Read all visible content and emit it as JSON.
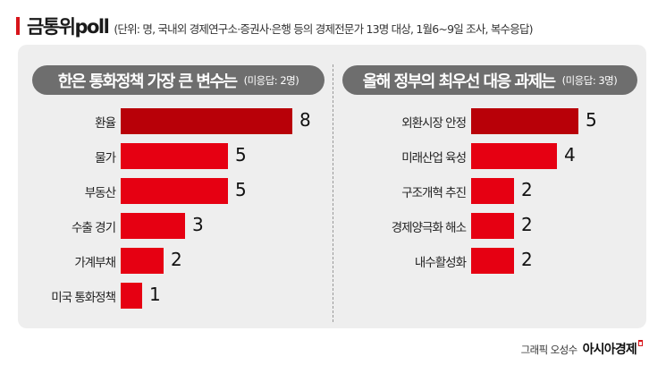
{
  "header": {
    "title": "금통위poll",
    "subtitle": "(단위: 명, 국내외 경제연구소·증권사·은행 등의 경제전문가 13명 대상, 1월6~9일 조사, 복수응답)",
    "accent_color": "#d7141a"
  },
  "left_panel": {
    "title": "한은 통화정책 가장 큰 변수는",
    "note": "(미응답: 2명)"
  },
  "right_panel": {
    "title": "올해 정부의 최우선 대응 과제는",
    "note": "(미응답: 3명)"
  },
  "credit": {
    "text": "그래픽 오성수",
    "brand": "아시아경제"
  },
  "colors": {
    "bar_top": "#b80008",
    "bar": "#e60012",
    "pill": "#6e6e6e",
    "panel": "#eeeeee"
  },
  "chart_data": [
    {
      "type": "bar",
      "orientation": "horizontal",
      "title": "한은 통화정책 가장 큰 변수는",
      "note": "(미응답: 2명)",
      "categories": [
        "환율",
        "물가",
        "부동산",
        "수출 경기",
        "가계부채",
        "미국 통화정책"
      ],
      "values": [
        8,
        5,
        5,
        3,
        2,
        1
      ],
      "unit": "명",
      "grid": false,
      "data_labels": true
    },
    {
      "type": "bar",
      "orientation": "horizontal",
      "title": "올해 정부의 최우선 대응 과제는",
      "note": "(미응답: 3명)",
      "categories": [
        "외환시장 안정",
        "미래산업 육성",
        "구조개혁 추진",
        "경제양극화 해소",
        "내수활성화"
      ],
      "values": [
        5,
        4,
        2,
        2,
        2
      ],
      "unit": "명",
      "grid": false,
      "data_labels": true
    }
  ]
}
